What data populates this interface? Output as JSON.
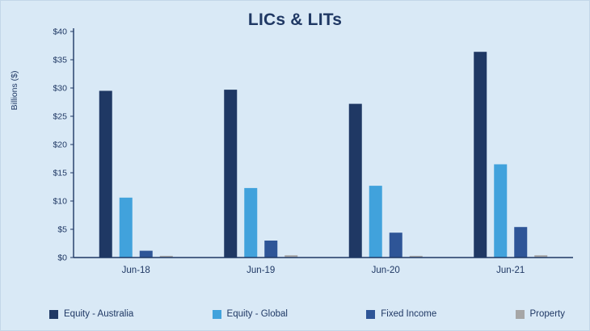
{
  "chart_data": {
    "type": "bar",
    "title": "LICs & LITs",
    "ylabel": "Billions ($)",
    "xlabel": "",
    "categories": [
      "Jun-18",
      "Jun-19",
      "Jun-20",
      "Jun-21"
    ],
    "series": [
      {
        "name": "Equity - Australia",
        "color": "#1f3864",
        "values": [
          29.5,
          29.7,
          27.2,
          36.4
        ]
      },
      {
        "name": "Equity - Global",
        "color": "#41a2dc",
        "values": [
          10.6,
          12.3,
          12.7,
          16.5
        ]
      },
      {
        "name": "Fixed Income",
        "color": "#2e5597",
        "values": [
          1.2,
          3.0,
          4.4,
          5.4
        ]
      },
      {
        "name": "Property",
        "color": "#a6a6a6",
        "values": [
          0.3,
          0.4,
          0.3,
          0.4
        ]
      }
    ],
    "ylim": [
      0,
      40
    ],
    "ytick_step": 5,
    "ytick_prefix": "$",
    "grid": false,
    "legend_position": "bottom",
    "colors": {
      "axis": "#1f3864",
      "background": "#d9e9f6",
      "title_text": "#1f3864"
    }
  }
}
